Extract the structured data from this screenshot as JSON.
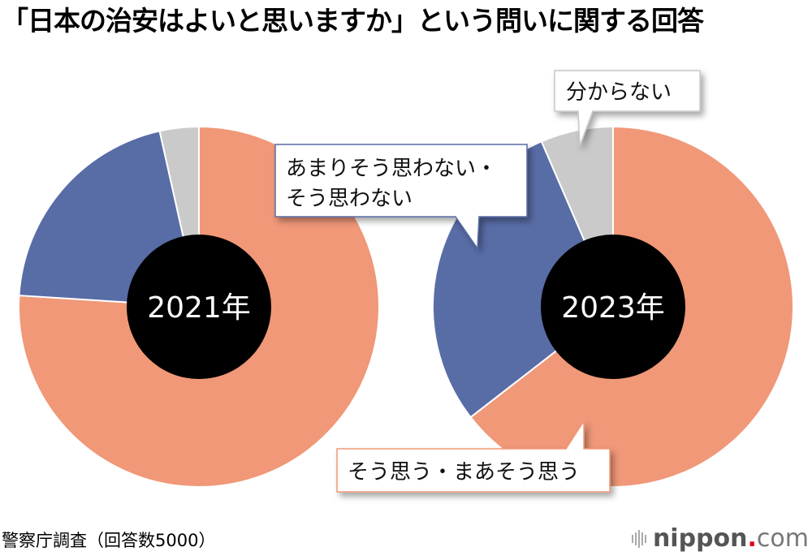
{
  "title": "「日本の治安はよいと思いますか」という問いに関する回答",
  "source": "警察庁調査（回答数5000）",
  "logo": {
    "brand": "nippon",
    "dot": ".",
    "tld": "com"
  },
  "callouts": {
    "dont_know": "分からない",
    "disagree_line1": "あまりそう思わない・",
    "disagree_line2": "そう思わない",
    "agree": "そう思う・まあそう思う"
  },
  "colors": {
    "agree": "#f09878",
    "disagree": "#586ca6",
    "dont_know": "#cacaca",
    "center": "#000000"
  },
  "chart_data": [
    {
      "type": "pie",
      "title": "2021年",
      "categories": [
        "そう思う・まあそう思う",
        "あまりそう思わない・そう思わない",
        "分からない"
      ],
      "values": [
        76.0,
        20.5,
        3.5
      ],
      "unit": "%",
      "colors": [
        "#f09878",
        "#586ca6",
        "#cacaca"
      ],
      "start": "12 o'clock, clockwise",
      "donut_center_label": "2021年"
    },
    {
      "type": "pie",
      "title": "2023年",
      "categories": [
        "そう思う・まあそう思う",
        "あまりそう思わない・そう思わない",
        "分からない"
      ],
      "values": [
        64.5,
        29.0,
        6.5
      ],
      "unit": "%",
      "colors": [
        "#f09878",
        "#586ca6",
        "#cacaca"
      ],
      "start": "12 o'clock, clockwise",
      "donut_center_label": "2023年"
    }
  ]
}
